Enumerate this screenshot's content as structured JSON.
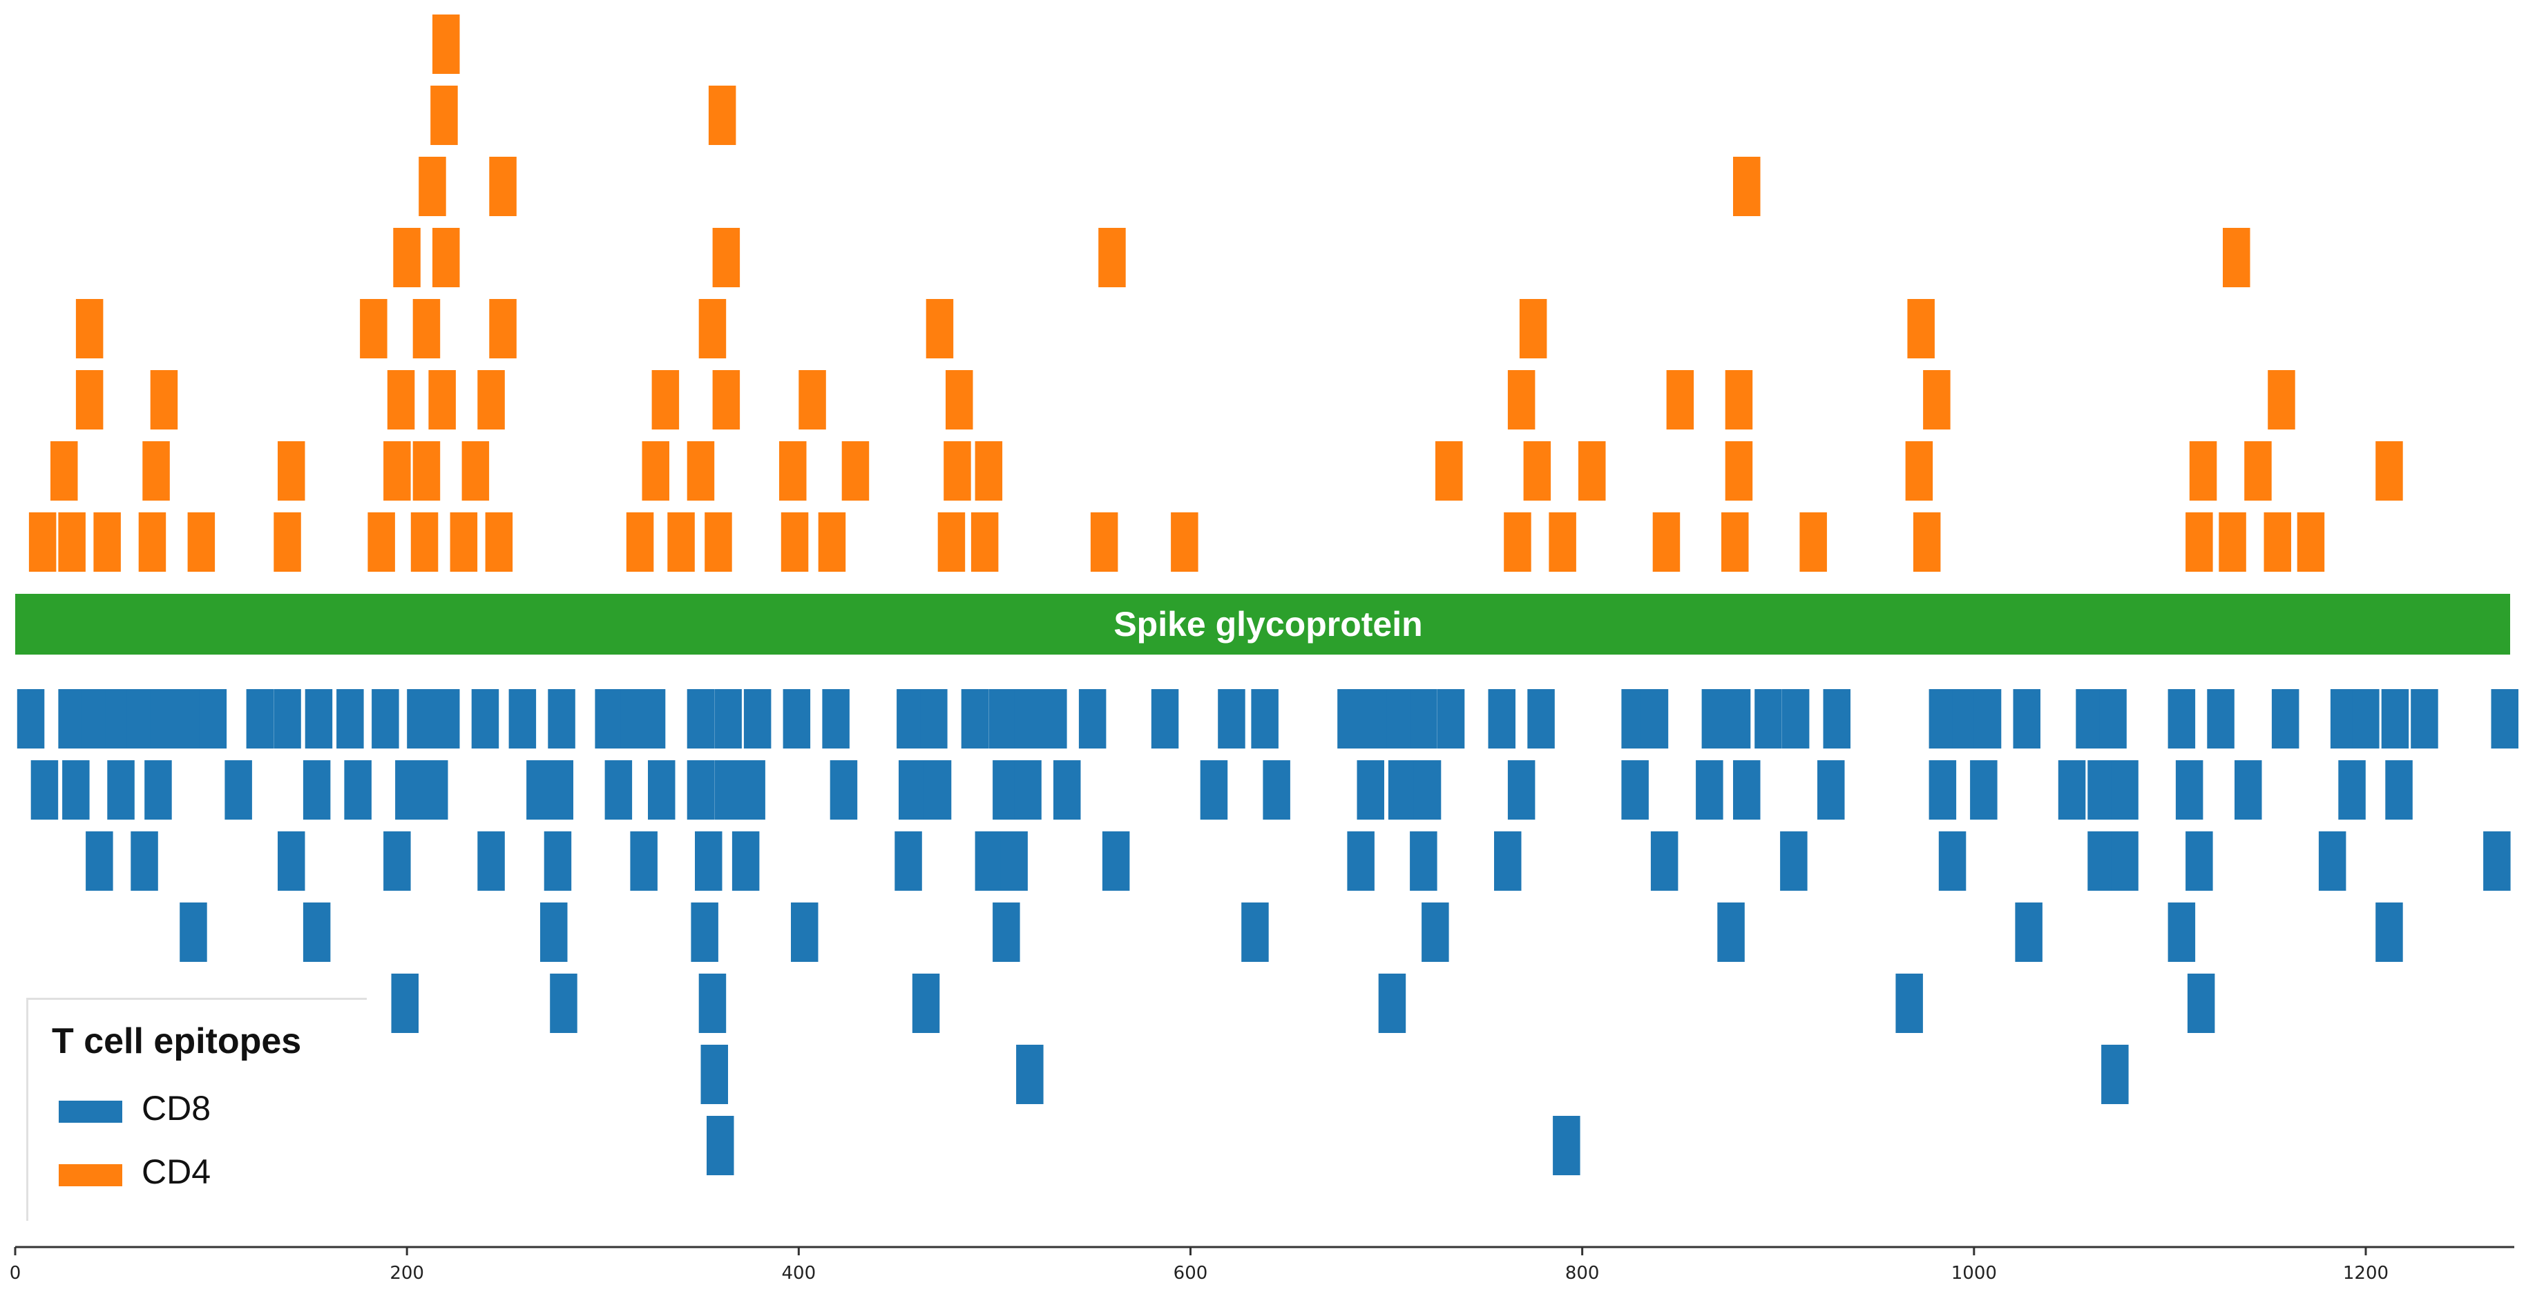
{
  "chart_data": {
    "type": "bar",
    "title": "",
    "xlabel": "",
    "ylabel": "",
    "xlim": [
      0,
      1273
    ],
    "xticks": [
      0,
      200,
      400,
      600,
      800,
      1000,
      1200
    ],
    "grid": false,
    "legend_position": "bottom-left",
    "protein_label": "Spike glycoprotein",
    "protein_color": "#2ca02c",
    "epitope_length": 15,
    "legend": {
      "title": "T cell epitopes",
      "items": [
        {
          "name": "CD8",
          "color": "#1f77b4"
        },
        {
          "name": "CD4",
          "color": "#ff7f0e"
        }
      ]
    },
    "series": [
      {
        "name": "CD4",
        "color": "#ff7f0e",
        "rows": [
          [
            7,
            22,
            40,
            63,
            88,
            132,
            180,
            202,
            222,
            240,
            312,
            333,
            352,
            391,
            410,
            471,
            488,
            549,
            590,
            760,
            783,
            836,
            871,
            911,
            969,
            1108,
            1125,
            1148,
            1165
          ],
          [
            18,
            65,
            134,
            188,
            203,
            228,
            320,
            343,
            390,
            422,
            474,
            490,
            725,
            770,
            798,
            873,
            965,
            1110,
            1138,
            1205
          ],
          [
            31,
            69,
            190,
            211,
            236,
            325,
            356,
            400,
            475,
            762,
            843,
            873,
            974,
            1150
          ],
          [
            31,
            176,
            203,
            242,
            349,
            465,
            768,
            966
          ],
          [
            193,
            213,
            356,
            553,
            1127
          ],
          [
            206,
            242,
            877
          ],
          [
            212,
            354
          ],
          [
            213
          ]
        ]
      },
      {
        "name": "CD8",
        "color": "#1f77b4",
        "rows": [
          [
            1,
            22,
            34,
            46,
            57,
            69,
            82,
            94,
            118,
            132,
            148,
            164,
            182,
            200,
            213,
            233,
            252,
            272,
            296,
            309,
            318,
            343,
            357,
            372,
            392,
            412,
            450,
            462,
            483,
            497,
            510,
            523,
            543,
            580,
            614,
            631,
            675,
            687,
            700,
            712,
            726,
            752,
            772,
            820,
            830,
            861,
            872,
            888,
            902,
            923,
            977,
            989,
            1000,
            1020,
            1052,
            1064,
            1099,
            1119,
            1152,
            1182,
            1193,
            1208,
            1223,
            1264
          ],
          [
            8,
            24,
            47,
            66,
            107,
            147,
            168,
            194,
            207,
            261,
            271,
            301,
            323,
            343,
            357,
            369,
            416,
            451,
            464,
            499,
            510,
            530,
            605,
            637,
            685,
            701,
            714,
            762,
            820,
            858,
            877,
            920,
            977,
            998,
            1043,
            1058,
            1070,
            1103,
            1133,
            1186,
            1210
          ],
          [
            36,
            59,
            134,
            188,
            236,
            270,
            314,
            347,
            366,
            449,
            490,
            503,
            555,
            680,
            712,
            755,
            835,
            901,
            982,
            1058,
            1070,
            1108,
            1176,
            1260
          ],
          [
            84,
            147,
            268,
            345,
            396,
            499,
            626,
            718,
            869,
            1021,
            1099,
            1205
          ],
          [
            192,
            273,
            349,
            458,
            696,
            960,
            1109
          ],
          [
            350,
            511,
            1065
          ],
          [
            353,
            785
          ]
        ]
      }
    ]
  }
}
